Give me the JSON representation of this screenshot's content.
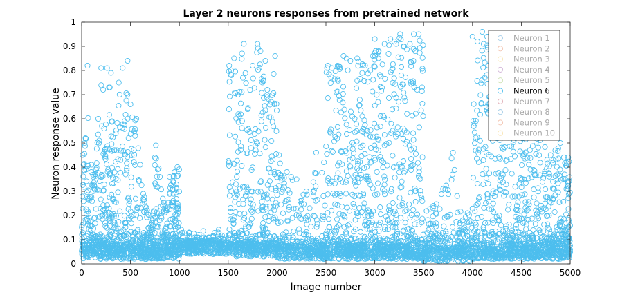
{
  "chart_data": {
    "type": "scatter",
    "title": "Layer 2 neurons responses from pretrained network",
    "xlabel": "Image number",
    "ylabel": "Neuron response value",
    "xlim": [
      0,
      5000
    ],
    "ylim": [
      0,
      1
    ],
    "xticks": [
      "0",
      "500",
      "1000",
      "1500",
      "2000",
      "2500",
      "3000",
      "3500",
      "4000",
      "4500",
      "5000"
    ],
    "yticks": [
      "0",
      "0.1",
      "0.2",
      "0.3",
      "0.4",
      "0.5",
      "0.6",
      "0.7",
      "0.8",
      "0.9",
      "1"
    ],
    "grid": false,
    "legend_position": "top-right",
    "marker": "open-circle",
    "highlighted_series": "Neuron 6",
    "series": [
      {
        "name": "Neuron 1",
        "color": "#0072BD",
        "visible": false
      },
      {
        "name": "Neuron 2",
        "color": "#D95319",
        "visible": false
      },
      {
        "name": "Neuron 3",
        "color": "#EDB120",
        "visible": false
      },
      {
        "name": "Neuron 4",
        "color": "#7E2F8E",
        "visible": false
      },
      {
        "name": "Neuron 5",
        "color": "#77AC30",
        "visible": false
      },
      {
        "name": "Neuron 6",
        "color": "#4DBEEE",
        "visible": true,
        "segments": [
          {
            "x_range": [
              0,
              1000
            ],
            "baseline_mean": 0.05,
            "high_responses": [
              [
                5,
                0.16
              ],
              [
                10,
                0.45
              ],
              [
                20,
                0.41
              ],
              [
                30,
                0.5
              ],
              [
                40,
                0.52
              ],
              [
                60,
                0.82
              ],
              [
                80,
                0.27
              ],
              [
                100,
                0.41
              ],
              [
                140,
                0.37
              ],
              [
                170,
                0.6
              ],
              [
                180,
                0.51
              ],
              [
                200,
                0.81
              ],
              [
                220,
                0.72
              ],
              [
                230,
                0.56
              ],
              [
                260,
                0.81
              ],
              [
                280,
                0.73
              ],
              [
                300,
                0.79
              ],
              [
                310,
                0.59
              ],
              [
                330,
                0.47
              ],
              [
                350,
                0.54
              ],
              [
                380,
                0.75
              ],
              [
                420,
                0.81
              ],
              [
                440,
                0.59
              ],
              [
                470,
                0.84
              ],
              [
                480,
                0.52
              ],
              [
                500,
                0.66
              ],
              [
                560,
                0.6
              ],
              [
                600,
                0.41
              ],
              [
                630,
                0.29
              ],
              [
                720,
                0.17
              ],
              [
                750,
                0.44
              ],
              [
                760,
                0.49
              ],
              [
                800,
                0.36
              ],
              [
                830,
                0.27
              ],
              [
                870,
                0.23
              ],
              [
                900,
                0.36
              ],
              [
                980,
                0.4
              ]
            ]
          },
          {
            "x_range": [
              1000,
              1500
            ],
            "baseline_mean": 0.07,
            "high_responses": [
              [
                1100,
                0.13
              ],
              [
                1200,
                0.12
              ],
              [
                1300,
                0.11
              ],
              [
                1400,
                0.13
              ]
            ]
          },
          {
            "x_range": [
              1500,
              2000
            ],
            "baseline_mean": 0.06,
            "high_responses": [
              [
                1510,
                0.82
              ],
              [
                1530,
                0.8
              ],
              [
                1560,
                0.85
              ],
              [
                1600,
                0.7
              ],
              [
                1640,
                0.87
              ],
              [
                1660,
                0.91
              ],
              [
                1700,
                0.64
              ],
              [
                1750,
                0.82
              ],
              [
                1800,
                0.91
              ],
              [
                1830,
                0.88
              ],
              [
                1850,
                0.75
              ],
              [
                1880,
                0.84
              ],
              [
                1900,
                0.72
              ],
              [
                1940,
                0.67
              ],
              [
                1980,
                0.86
              ]
            ]
          },
          {
            "x_range": [
              2000,
              2500
            ],
            "baseline_mean": 0.05,
            "high_responses": [
              [
                2020,
                0.45
              ],
              [
                2100,
                0.38
              ],
              [
                2200,
                0.35
              ],
              [
                2300,
                0.3
              ],
              [
                2400,
                0.46
              ],
              [
                2480,
                0.42
              ]
            ]
          },
          {
            "x_range": [
              2500,
              3500
            ],
            "baseline_mean": 0.05,
            "high_responses": [
              [
                2520,
                0.82
              ],
              [
                2560,
                0.81
              ],
              [
                2620,
                0.82
              ],
              [
                2680,
                0.86
              ],
              [
                2750,
                0.84
              ],
              [
                2820,
                0.85
              ],
              [
                2900,
                0.82
              ],
              [
                2980,
                0.86
              ],
              [
                3000,
                0.93
              ],
              [
                3040,
                0.88
              ],
              [
                3100,
                0.91
              ],
              [
                3160,
                0.93
              ],
              [
                3200,
                0.92
              ],
              [
                3260,
                0.95
              ],
              [
                3300,
                0.9
              ],
              [
                3360,
                0.91
              ],
              [
                3400,
                0.95
              ],
              [
                3450,
                0.95
              ]
            ]
          },
          {
            "x_range": [
              3500,
              4000
            ],
            "baseline_mean": 0.04,
            "high_responses": [
              [
                3600,
                0.24
              ],
              [
                3700,
                0.31
              ],
              [
                3800,
                0.46
              ],
              [
                3900,
                0.18
              ],
              [
                3950,
                0.21
              ]
            ]
          },
          {
            "x_range": [
              4000,
              5000
            ],
            "baseline_mean": 0.05,
            "high_responses": [
              [
                4000,
                0.94
              ],
              [
                4050,
                0.92
              ],
              [
                4100,
                0.96
              ],
              [
                4150,
                0.94
              ],
              [
                4200,
                0.9
              ],
              [
                4260,
                0.95
              ],
              [
                4300,
                0.85
              ],
              [
                4400,
                0.8
              ],
              [
                4500,
                0.7
              ],
              [
                4600,
                0.64
              ],
              [
                4700,
                0.55
              ],
              [
                4800,
                0.45
              ],
              [
                4900,
                0.5
              ],
              [
                4980,
                0.44
              ]
            ]
          }
        ]
      },
      {
        "name": "Neuron 7",
        "color": "#A2142F",
        "visible": false
      },
      {
        "name": "Neuron 8",
        "color": "#0072BD",
        "visible": false
      },
      {
        "name": "Neuron 9",
        "color": "#D95319",
        "visible": false
      },
      {
        "name": "Neuron 10",
        "color": "#EDB120",
        "visible": false
      }
    ]
  }
}
